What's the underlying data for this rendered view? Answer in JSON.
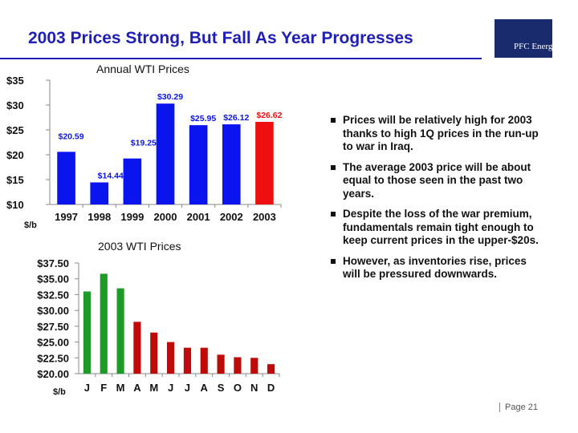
{
  "title": "2003 Prices Strong, But Fall As Year Progresses",
  "logo": {
    "text": "PFC Energy"
  },
  "page": {
    "label": "Page 21"
  },
  "colors": {
    "title": "#1f1fb8",
    "blue_bar": "#0a14ee",
    "red_bar": "#ee1010",
    "green_bar": "#1e9a26",
    "dark_red_bar": "#c00a0a"
  },
  "bullets": [
    "Prices will be relatively high for 2003 thanks to high 1Q prices in the run-up to war in Iraq.",
    "The average 2003 price will be about equal to those seen in the past two years.",
    "Despite the loss of the war premium, fundamentals remain tight enough to keep current prices in the upper-$20s.",
    "However, as inventories rise, prices will be pressured downwards."
  ],
  "chart_data": [
    {
      "type": "bar",
      "title": "Annual WTI Prices",
      "ylabel": "$/b",
      "categories": [
        "1997",
        "1998",
        "1999",
        "2000",
        "2001",
        "2002",
        "2003"
      ],
      "values": [
        20.59,
        14.44,
        19.25,
        30.29,
        25.95,
        26.12,
        26.62
      ],
      "data_labels": [
        "$20.59",
        "$14.44",
        "$19.25",
        "$30.29",
        "$25.95",
        "$26.12",
        "$26.62"
      ],
      "bar_colors": [
        "blue",
        "blue",
        "blue",
        "blue",
        "blue",
        "blue",
        "red"
      ],
      "ylim": [
        10,
        35
      ],
      "yticks": [
        10,
        15,
        20,
        25,
        30,
        35
      ],
      "ytick_labels": [
        "$10",
        "$15",
        "$20",
        "$25",
        "$30",
        "$35"
      ],
      "grid": false
    },
    {
      "type": "bar",
      "title": "2003 WTI Prices",
      "ylabel": "$/b",
      "categories": [
        "J",
        "F",
        "M",
        "A",
        "M",
        "J",
        "J",
        "A",
        "S",
        "O",
        "N",
        "D"
      ],
      "values": [
        33.0,
        35.8,
        33.5,
        28.2,
        26.5,
        25.0,
        24.1,
        24.1,
        23.0,
        22.6,
        22.5,
        21.5
      ],
      "bar_colors": [
        "green",
        "green",
        "green",
        "darkred",
        "darkred",
        "darkred",
        "darkred",
        "darkred",
        "darkred",
        "darkred",
        "darkred",
        "darkred"
      ],
      "ylim": [
        20,
        37.5
      ],
      "yticks": [
        20,
        22.5,
        25,
        27.5,
        30,
        32.5,
        35,
        37.5
      ],
      "ytick_labels": [
        "$20.00",
        "$22.50",
        "$25.00",
        "$27.50",
        "$30.00",
        "$32.50",
        "$35.00",
        "$37.50"
      ],
      "grid": false
    }
  ]
}
